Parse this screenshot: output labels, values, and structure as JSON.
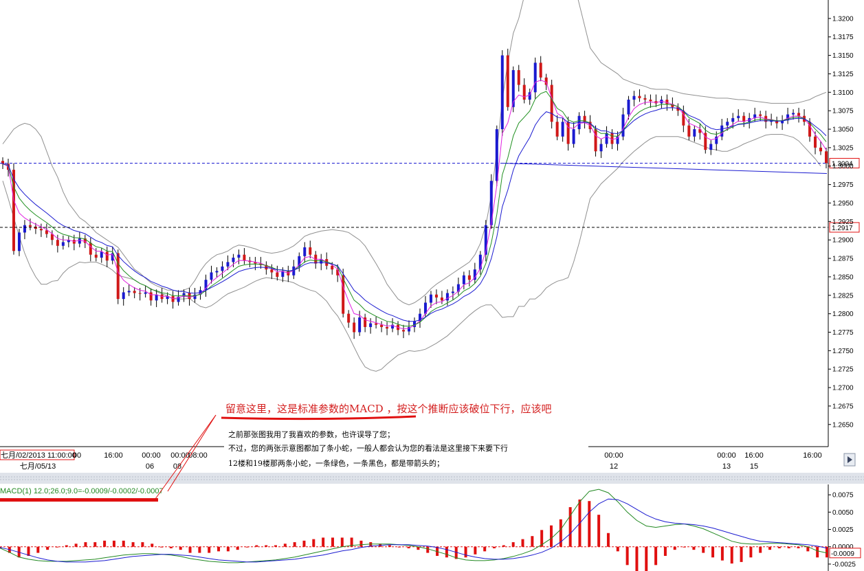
{
  "chart_data": [
    {
      "type": "candlestick",
      "title": "",
      "ylim": [
        1.262,
        1.3225
      ],
      "y_ticks": [
        "1.2650",
        "1.2675",
        "1.2700",
        "1.2725",
        "1.2750",
        "1.2775",
        "1.2800",
        "1.2825",
        "1.2850",
        "1.2875",
        "1.2900",
        "1.2925",
        "1.2950",
        "1.2975",
        "1.3000",
        "1.3025",
        "1.3050",
        "1.3075",
        "1.3100",
        "1.3125",
        "1.3150",
        "1.3175",
        "1.3200"
      ],
      "current_price": "1.3004",
      "level_price": "1.2917",
      "current_price_value": 1.3004,
      "level_price_value": 1.2917,
      "time_labels": [
        "七月/02/2013 11:00:00",
        "00",
        "16:00",
        "00:00",
        "00:00",
        "08:00",
        "00:00",
        "00:00",
        "16:00",
        "16:00"
      ],
      "date_labels": [
        "七月/05/13",
        "06",
        "08",
        "12",
        "13",
        "15"
      ],
      "candles_close": [
        1.3003,
        1.2995,
        1.2885,
        1.291,
        1.292,
        1.2918,
        1.2915,
        1.2913,
        1.2908,
        1.29,
        1.2892,
        1.2897,
        1.29,
        1.2895,
        1.2902,
        1.2896,
        1.288,
        1.2876,
        1.2884,
        1.2872,
        1.2882,
        1.282,
        1.2829,
        1.2831,
        1.2828,
        1.2827,
        1.2829,
        1.2818,
        1.2826,
        1.282,
        1.2824,
        1.2816,
        1.2823,
        1.2828,
        1.282,
        1.2826,
        1.2832,
        1.2846,
        1.2856,
        1.2858,
        1.2864,
        1.287,
        1.2876,
        1.288,
        1.2872,
        1.287,
        1.2868,
        1.2866,
        1.286,
        1.2856,
        1.285,
        1.2858,
        1.2852,
        1.2864,
        1.2878,
        1.289,
        1.288,
        1.2868,
        1.2874,
        1.2865,
        1.286,
        1.2852,
        1.28,
        1.2788,
        1.2775,
        1.2795,
        1.2782,
        1.2787,
        1.2785,
        1.2782,
        1.278,
        1.2785,
        1.2778,
        1.2776,
        1.2782,
        1.279,
        1.28,
        1.2815,
        1.2826,
        1.2822,
        1.2818,
        1.2828,
        1.283,
        1.284,
        1.2852,
        1.2846,
        1.286,
        1.288,
        1.292,
        1.298,
        1.305,
        1.315,
        1.308,
        1.313,
        1.311,
        1.309,
        1.31,
        1.314,
        1.312,
        1.311,
        1.306,
        1.304,
        1.306,
        1.303,
        1.305,
        1.3068,
        1.306,
        1.305,
        1.302,
        1.303,
        1.3045,
        1.303,
        1.304,
        1.307,
        1.309,
        1.3095,
        1.3092,
        1.309,
        1.3088,
        1.3085,
        1.309,
        1.3084,
        1.308,
        1.3075,
        1.3055,
        1.304,
        1.305,
        1.3045,
        1.3022,
        1.303,
        1.304,
        1.3055,
        1.306,
        1.3065,
        1.3068,
        1.306,
        1.3065,
        1.307,
        1.3068,
        1.306,
        1.3062,
        1.3058,
        1.3062,
        1.307,
        1.3072,
        1.3068,
        1.306,
        1.304,
        1.3025,
        1.302,
        1.3004
      ],
      "upper_band": [
        1.303,
        1.304,
        1.305,
        1.3055,
        1.3058,
        1.3056,
        1.305,
        1.304,
        1.302,
        1.3,
        1.2985,
        1.2965,
        1.295,
        1.294,
        1.293,
        1.2925,
        1.2918,
        1.291,
        1.2905,
        1.29,
        1.2895,
        1.289,
        1.288,
        1.287,
        1.286,
        1.2855,
        1.2848,
        1.2842,
        1.2838,
        1.2835,
        1.2832,
        1.2832,
        1.283,
        1.2832,
        1.2835,
        1.2845,
        1.2858,
        1.2868,
        1.2875,
        1.288,
        1.2882,
        1.2885,
        1.289,
        1.2893,
        1.2892,
        1.289,
        1.2888,
        1.2885,
        1.2883,
        1.2882,
        1.2883,
        1.2885,
        1.2888,
        1.2892,
        1.2898,
        1.2905,
        1.2908,
        1.291,
        1.2912,
        1.2913,
        1.2914,
        1.2913,
        1.2912,
        1.291,
        1.2905,
        1.29,
        1.2892,
        1.288,
        1.2868,
        1.2855,
        1.284,
        1.283,
        1.282,
        1.2815,
        1.2812,
        1.2815,
        1.282,
        1.2826,
        1.2834,
        1.284,
        1.2845,
        1.285,
        1.2855,
        1.286,
        1.2865,
        1.287,
        1.288,
        1.2895,
        1.292,
        1.296,
        1.302,
        1.309,
        1.314,
        1.318,
        1.32,
        1.323,
        1.324,
        1.326,
        1.327,
        1.3275,
        1.328,
        1.328,
        1.328,
        1.3275,
        1.325,
        1.322,
        1.319,
        1.316,
        1.315,
        1.314,
        1.3135,
        1.313,
        1.3125,
        1.3118,
        1.3115,
        1.3112,
        1.311,
        1.3108,
        1.3105,
        1.3104,
        1.3104,
        1.3104,
        1.3102,
        1.31,
        1.3098,
        1.3097,
        1.3096,
        1.3095,
        1.3094,
        1.3093,
        1.3092,
        1.3092,
        1.3092,
        1.3091,
        1.309,
        1.309,
        1.3089,
        1.3088,
        1.3087,
        1.3086,
        1.3085,
        1.3085,
        1.3085,
        1.3085,
        1.3085,
        1.3086,
        1.3088,
        1.309,
        1.3094,
        1.3097,
        1.31
      ],
      "middle_band": [
        1.3005,
        1.2998,
        1.299,
        1.298,
        1.297,
        1.296,
        1.295,
        1.294,
        1.293,
        1.2922,
        1.2915,
        1.291,
        1.2906,
        1.2903,
        1.29,
        1.2897,
        1.2894,
        1.289,
        1.2886,
        1.2882,
        1.2877,
        1.2871,
        1.2865,
        1.2859,
        1.2853,
        1.2848,
        1.2843,
        1.2838,
        1.2834,
        1.2831,
        1.2828,
        1.2826,
        1.2825,
        1.2826,
        1.2828,
        1.283,
        1.2834,
        1.2838,
        1.2843,
        1.2848,
        1.2852,
        1.2856,
        1.286,
        1.2863,
        1.2864,
        1.2865,
        1.2866,
        1.2866,
        1.2866,
        1.2865,
        1.2865,
        1.2865,
        1.2866,
        1.2867,
        1.2868,
        1.287,
        1.287,
        1.287,
        1.2868,
        1.2865,
        1.286,
        1.2855,
        1.2848,
        1.284,
        1.283,
        1.282,
        1.281,
        1.2802,
        1.2795,
        1.279,
        1.2786,
        1.2784,
        1.2782,
        1.2781,
        1.2781,
        1.2782,
        1.2785,
        1.2789,
        1.2795,
        1.28,
        1.2805,
        1.281,
        1.2816,
        1.2822,
        1.2828,
        1.2834,
        1.2842,
        1.2852,
        1.2866,
        1.2886,
        1.2912,
        1.2942,
        1.2968,
        1.2988,
        1.3005,
        1.302,
        1.303,
        1.304,
        1.3048,
        1.3055,
        1.306,
        1.3062,
        1.3063,
        1.3062,
        1.306,
        1.3058,
        1.3058,
        1.3058,
        1.3058,
        1.3058,
        1.3059,
        1.306,
        1.3061,
        1.3062,
        1.3064,
        1.3066,
        1.3068,
        1.307,
        1.3071,
        1.3072,
        1.3072,
        1.3072,
        1.3071,
        1.307,
        1.3068,
        1.3066,
        1.3064,
        1.3062,
        1.306,
        1.3058,
        1.3057,
        1.3056,
        1.3056,
        1.3057,
        1.3058,
        1.306,
        1.3061,
        1.3062,
        1.3063,
        1.3064,
        1.3064,
        1.3064,
        1.3064,
        1.3063,
        1.3062,
        1.306,
        1.3057,
        1.3054,
        1.305
      ],
      "lower_band": [
        1.298,
        1.2956,
        1.293,
        1.2905,
        1.2882,
        1.2864,
        1.285,
        1.284,
        1.284,
        1.2844,
        1.2845,
        1.2855,
        1.2862,
        1.2866,
        1.287,
        1.2869,
        1.287,
        1.287,
        1.2867,
        1.2864,
        1.2859,
        1.2852,
        1.285,
        1.2848,
        1.2846,
        1.2841,
        1.2838,
        1.2834,
        1.283,
        1.2827,
        1.2824,
        1.282,
        1.282,
        1.282,
        1.2821,
        1.2815,
        1.281,
        1.2808,
        1.2811,
        1.2816,
        1.2822,
        1.2827,
        1.283,
        1.2833,
        1.2836,
        1.284,
        1.2844,
        1.2847,
        1.2849,
        1.2848,
        1.2847,
        1.2845,
        1.2844,
        1.2842,
        1.2838,
        1.2835,
        1.2832,
        1.283,
        1.2824,
        1.2817,
        1.2806,
        1.2797,
        1.2784,
        1.277,
        1.2755,
        1.274,
        1.2728,
        1.2724,
        1.2722,
        1.2725,
        1.2732,
        1.2738,
        1.2744,
        1.2747,
        1.275,
        1.2749,
        1.275,
        1.2752,
        1.2756,
        1.276,
        1.2765,
        1.277,
        1.2777,
        1.2784,
        1.2791,
        1.2798,
        1.2804,
        1.2809,
        1.2812,
        1.2812,
        1.2804,
        1.2795,
        1.2796,
        1.2796,
        1.281,
        1.281,
        1.282,
        1.282,
        1.2826,
        1.2835,
        1.284,
        1.2844,
        1.2846,
        1.2849,
        1.287,
        1.2896,
        1.2926,
        1.2956,
        1.2966,
        1.2976,
        1.2983,
        1.299,
        1.2997,
        1.3006,
        1.3013,
        1.302,
        1.3026,
        1.3032,
        1.3037,
        1.304,
        1.304,
        1.304,
        1.304,
        1.304,
        1.3038,
        1.3035,
        1.3032,
        1.3029,
        1.3026,
        1.3023,
        1.3022,
        1.302,
        1.302,
        1.3023,
        1.3026,
        1.303,
        1.3033,
        1.3036,
        1.3039,
        1.3042,
        1.3043,
        1.3043,
        1.3043,
        1.3041,
        1.3039,
        1.3034,
        1.3026,
        1.3018,
        1.301,
        1.3
      ]
    },
    {
      "type": "macd",
      "indicator_label": "MACD(1) 12.0;26.0;9.0=-0.0009/-0.0002/-0.0007",
      "ylim": [
        -0.0035,
        0.009
      ],
      "y_ticks": [
        "0.0075",
        "0.0050",
        "0.0025",
        "0.0000",
        "-0.0025"
      ],
      "current_value": "-0.0009",
      "macd": [
        -0.0002,
        -0.0008,
        -0.0015,
        -0.0018,
        -0.002,
        -0.0021,
        -0.0021,
        -0.0021,
        -0.002,
        -0.0019,
        -0.0018,
        -0.0016,
        -0.0014,
        -0.0012,
        -0.0011,
        -0.001,
        -0.001,
        -0.0011,
        -0.0012,
        -0.0014,
        -0.0017,
        -0.0019,
        -0.0021,
        -0.0022,
        -0.0023,
        -0.0023,
        -0.0022,
        -0.0021,
        -0.002,
        -0.0019,
        -0.0017,
        -0.0015,
        -0.0012,
        -0.0009,
        -0.0006,
        -0.0003,
        0.0,
        0.0002,
        0.0003,
        0.0004,
        0.0004,
        0.0004,
        0.0003,
        0.0002,
        0.0,
        -0.0003,
        -0.0007,
        -0.0011,
        -0.0016,
        -0.0019,
        -0.002,
        -0.002,
        -0.0019,
        -0.0017,
        -0.0014,
        -0.001,
        -0.0005,
        0.0003,
        0.0012,
        0.0025,
        0.0045,
        0.0065,
        0.008,
        0.0083,
        0.0078,
        0.0065,
        0.005,
        0.0038,
        0.003,
        0.0028,
        0.003,
        0.0032,
        0.0033,
        0.003,
        0.0026,
        0.002,
        0.0014,
        0.0008,
        0.0005,
        0.0004,
        0.0004,
        0.0005,
        0.0005,
        0.0004,
        0.0003,
        0.0,
        -0.0006,
        -0.0009
      ],
      "signal": [
        -0.0001,
        -0.0004,
        -0.0008,
        -0.0012,
        -0.0016,
        -0.0019,
        -0.0021,
        -0.0022,
        -0.0022,
        -0.0022,
        -0.0021,
        -0.002,
        -0.0018,
        -0.0016,
        -0.0014,
        -0.0013,
        -0.0012,
        -0.0011,
        -0.0011,
        -0.0012,
        -0.0013,
        -0.0015,
        -0.0017,
        -0.0019,
        -0.002,
        -0.0021,
        -0.0022,
        -0.0022,
        -0.0021,
        -0.002,
        -0.0019,
        -0.0018,
        -0.0016,
        -0.0014,
        -0.0012,
        -0.0009,
        -0.0006,
        -0.0004,
        -0.0001,
        0.0001,
        0.0002,
        0.0003,
        0.0003,
        0.0003,
        0.0002,
        0.0001,
        -0.0001,
        -0.0004,
        -0.0008,
        -0.0012,
        -0.0015,
        -0.0017,
        -0.0018,
        -0.0018,
        -0.0017,
        -0.0015,
        -0.0012,
        -0.0008,
        -0.0002,
        0.0007,
        0.0019,
        0.0034,
        0.005,
        0.0062,
        0.0069,
        0.0068,
        0.0062,
        0.0054,
        0.0046,
        0.004,
        0.0036,
        0.0034,
        0.0033,
        0.0032,
        0.003,
        0.0027,
        0.0023,
        0.0019,
        0.0015,
        0.0011,
        0.0008,
        0.0007,
        0.0006,
        0.0005,
        0.0004,
        0.0003,
        0.0001,
        -0.0002
      ]
    }
  ],
  "annotations": {
    "headline": "留意这里，这是标准参数的MACD  ，按这个推断应该破位下行，应该吧",
    "note_lines": [
      "之前那张图我用了我喜欢的参数，也许误导了您；",
      "不过，您的两张示意图都加了条小蛇，一般人都会认为您的看法是这里接下来要下行",
      "12楼和19楼那两条小蛇，一条绿色，一条黑色，都是带箭头的；"
    ]
  },
  "colors": {
    "bull_candle": "#1a1ad0",
    "bear_candle": "#d01818",
    "bollinger": "#909090",
    "ma_fast": "#e020e0",
    "ma_mid": "#209020",
    "ma_slow": "#1a1ad0",
    "annotation": "#d42020",
    "macd_line": "#208820",
    "signal_line": "#1a1ad0",
    "histogram": "#e01010"
  }
}
